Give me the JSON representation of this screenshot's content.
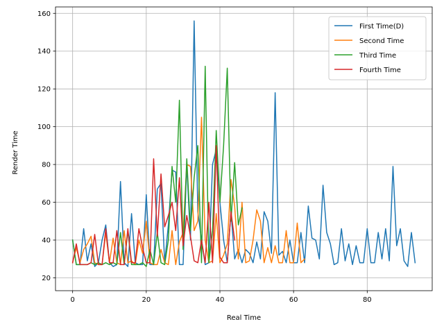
{
  "chart_data": {
    "type": "line",
    "title": "",
    "xlabel": "Real Time",
    "ylabel": "Render Time",
    "xlim": [
      -4.65,
      97.65
    ],
    "ylim": [
      13.2,
      163.4
    ],
    "xticks": [
      0,
      20,
      40,
      60,
      80
    ],
    "yticks": [
      20,
      40,
      60,
      80,
      100,
      120,
      140,
      160
    ],
    "grid": true,
    "legend_position": "top-right",
    "series": [
      {
        "name": "First Time(D)",
        "color": "#1f77b4",
        "x": [
          0,
          1,
          2,
          3,
          4,
          5,
          6,
          7,
          8,
          9,
          10,
          11,
          12,
          13,
          14,
          15,
          16,
          17,
          18,
          19,
          20,
          21,
          22,
          23,
          24,
          25,
          26,
          27,
          28,
          29,
          30,
          31,
          32,
          33,
          34,
          35,
          36,
          37,
          38,
          39,
          40,
          41,
          42,
          43,
          44,
          45,
          46,
          47,
          48,
          49,
          50,
          51,
          52,
          53,
          54,
          55,
          56,
          57,
          58,
          59,
          60,
          61,
          62,
          63,
          64,
          65,
          66,
          67,
          68,
          69,
          70,
          71,
          72,
          73,
          74,
          75,
          76,
          77,
          78,
          79,
          80,
          81,
          82,
          83,
          84,
          85,
          86,
          87,
          88,
          89,
          90,
          91,
          92,
          93
        ],
        "values": [
          40,
          27,
          27,
          46,
          29,
          38,
          26,
          28,
          40,
          48,
          28,
          26,
          27,
          71,
          28,
          26,
          54,
          28,
          27,
          27,
          64,
          27,
          27,
          67,
          70,
          28,
          48,
          77,
          76,
          27,
          27,
          80,
          40,
          156,
          55,
          40,
          27,
          28,
          80,
          88,
          60,
          40,
          28,
          55,
          30,
          35,
          28,
          35,
          33,
          28,
          39,
          30,
          55,
          50,
          33,
          118,
          32,
          34,
          28,
          40,
          28,
          28,
          44,
          28,
          58,
          41,
          40,
          30,
          69,
          44,
          38,
          27,
          28,
          46,
          29,
          38,
          27,
          37,
          28,
          28,
          46,
          28,
          28,
          44,
          30,
          46,
          29,
          79,
          37,
          46,
          29,
          26,
          44,
          28
        ]
      },
      {
        "name": "Second Time",
        "color": "#ff7f0e",
        "x": [
          0,
          1,
          2,
          3,
          4,
          5,
          6,
          7,
          8,
          9,
          10,
          11,
          12,
          13,
          14,
          15,
          16,
          17,
          18,
          19,
          20,
          21,
          22,
          23,
          24,
          25,
          26,
          27,
          28,
          29,
          30,
          31,
          32,
          33,
          34,
          35,
          36,
          37,
          38,
          39,
          40,
          41,
          42,
          43,
          44,
          45,
          46,
          47,
          48,
          49,
          50,
          51,
          52,
          53,
          54,
          55,
          56,
          57,
          58,
          59,
          60,
          61,
          62,
          63
        ],
        "values": [
          28,
          36,
          28,
          35,
          38,
          42,
          28,
          27,
          27,
          44,
          28,
          41,
          28,
          27,
          45,
          28,
          29,
          27,
          40,
          33,
          50,
          28,
          27,
          27,
          35,
          28,
          27,
          45,
          27,
          39,
          44,
          80,
          79,
          45,
          50,
          105,
          40,
          28,
          29,
          54,
          28,
          32,
          38,
          72,
          58,
          30,
          60,
          28,
          29,
          40,
          56,
          50,
          28,
          36,
          28,
          37,
          28,
          28,
          45,
          28,
          28,
          49,
          28,
          30
        ]
      },
      {
        "name": "Third Time",
        "color": "#2ca02c",
        "x": [
          0,
          1,
          2,
          3,
          4,
          5,
          6,
          7,
          8,
          9,
          10,
          11,
          12,
          13,
          14,
          15,
          16,
          17,
          18,
          19,
          20,
          21,
          22,
          23,
          24,
          25,
          26,
          27,
          28,
          29,
          30,
          31,
          32,
          33,
          34,
          35,
          36,
          37,
          38,
          39,
          40,
          41,
          42,
          43,
          44,
          45,
          46
        ],
        "values": [
          40,
          27,
          27,
          27,
          27,
          28,
          27,
          28,
          27,
          28,
          27,
          28,
          27,
          44,
          27,
          45,
          27,
          27,
          27,
          28,
          26,
          35,
          27,
          44,
          28,
          27,
          40,
          79,
          60,
          114,
          35,
          83,
          45,
          73,
          90,
          28,
          132,
          28,
          45,
          98,
          60,
          90,
          131,
          50,
          81,
          48,
          57
        ]
      },
      {
        "name": "Fourth Time",
        "color": "#d62728",
        "x": [
          0,
          1,
          2,
          3,
          4,
          5,
          6,
          7,
          8,
          9,
          10,
          11,
          12,
          13,
          14,
          15,
          16,
          17,
          18,
          19,
          20,
          21,
          22,
          23,
          24,
          25,
          26,
          27,
          28,
          29,
          30,
          31,
          32,
          33,
          34,
          35,
          36,
          37,
          38,
          39,
          40,
          41,
          42,
          43,
          44
        ],
        "values": [
          28,
          38,
          27,
          27,
          27,
          28,
          43,
          27,
          27,
          46,
          28,
          28,
          45,
          27,
          27,
          46,
          28,
          28,
          46,
          36,
          28,
          28,
          83,
          42,
          75,
          47,
          53,
          60,
          45,
          73,
          37,
          53,
          42,
          29,
          28,
          40,
          28,
          60,
          28,
          90,
          31,
          28,
          28,
          55,
          40
        ]
      }
    ]
  }
}
